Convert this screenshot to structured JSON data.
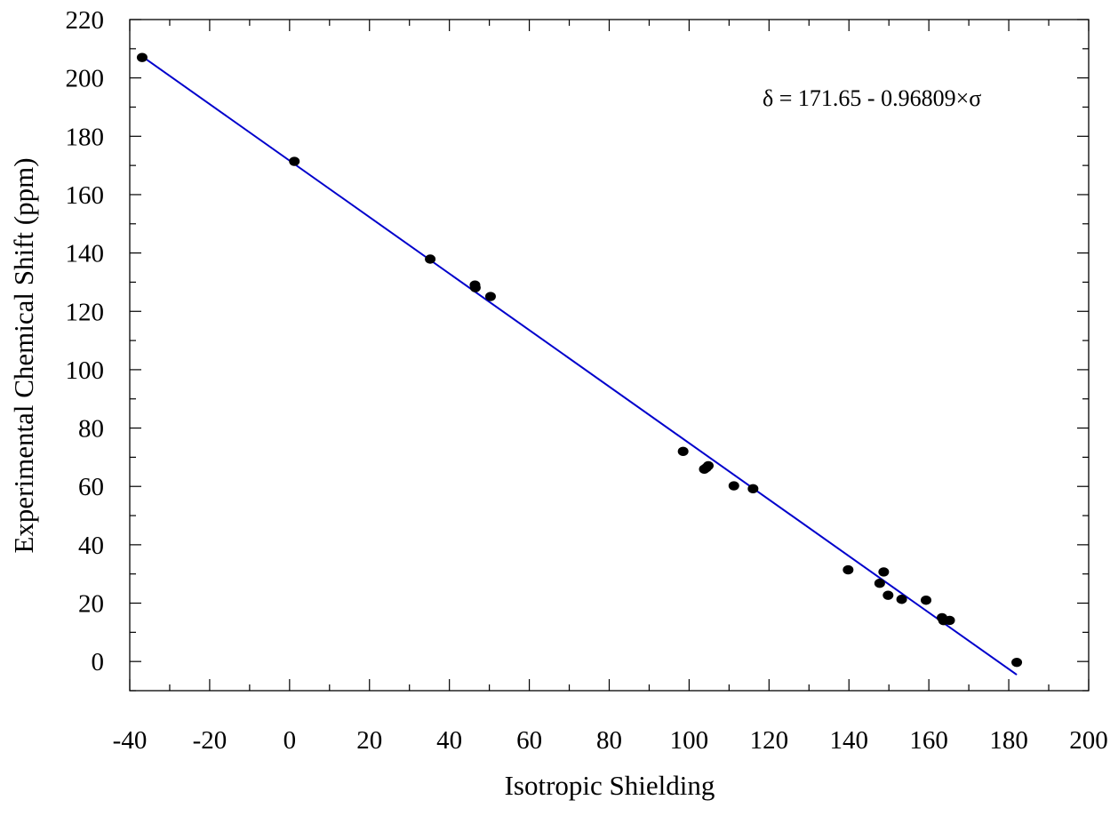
{
  "chart_data": {
    "type": "scatter",
    "title": "",
    "xlabel": "Isotropic Shielding",
    "ylabel": "Experimental Chemical Shift (ppm)",
    "xlim": [
      -40,
      200
    ],
    "ylim": [
      -10,
      220
    ],
    "x_ticks": [
      -40,
      -20,
      0,
      20,
      40,
      60,
      80,
      100,
      120,
      140,
      160,
      180,
      200
    ],
    "y_ticks": [
      0,
      20,
      40,
      60,
      80,
      100,
      120,
      140,
      160,
      180,
      200,
      220
    ],
    "x_tick_labels": [
      "-40",
      "-20",
      "0",
      "20",
      "40",
      "60",
      "80",
      "100",
      "120",
      "140",
      "160",
      "180",
      "200"
    ],
    "y_tick_labels": [
      "0",
      "20",
      "40",
      "60",
      "80",
      "100",
      "120",
      "140",
      "160",
      "180",
      "200",
      "220"
    ],
    "grid": false,
    "annotation": "δ = 171.65 - 0.96809×σ",
    "colors": {
      "points": "#000000",
      "fit_line": "#0000cc",
      "axes": "#000000"
    },
    "points": [
      {
        "x": -36.9,
        "y": 207.0
      },
      {
        "x": 1.2,
        "y": 171.4
      },
      {
        "x": 35.2,
        "y": 137.9
      },
      {
        "x": 46.4,
        "y": 129.0
      },
      {
        "x": 46.5,
        "y": 128.1
      },
      {
        "x": 50.3,
        "y": 125.1
      },
      {
        "x": 98.5,
        "y": 72.0
      },
      {
        "x": 103.8,
        "y": 65.9
      },
      {
        "x": 104.3,
        "y": 66.4
      },
      {
        "x": 104.8,
        "y": 67.1
      },
      {
        "x": 111.2,
        "y": 60.2
      },
      {
        "x": 116.0,
        "y": 59.2
      },
      {
        "x": 139.8,
        "y": 31.4
      },
      {
        "x": 147.7,
        "y": 26.8
      },
      {
        "x": 148.7,
        "y": 30.7
      },
      {
        "x": 149.8,
        "y": 22.7
      },
      {
        "x": 153.2,
        "y": 21.3
      },
      {
        "x": 159.3,
        "y": 21.0
      },
      {
        "x": 163.3,
        "y": 15.0
      },
      {
        "x": 163.7,
        "y": 14.0
      },
      {
        "x": 165.2,
        "y": 14.1
      },
      {
        "x": 182.0,
        "y": -0.3
      }
    ],
    "fit_line": {
      "intercept": 171.65,
      "slope": -0.96809,
      "x_range": [
        -36.9,
        182.0
      ]
    }
  }
}
